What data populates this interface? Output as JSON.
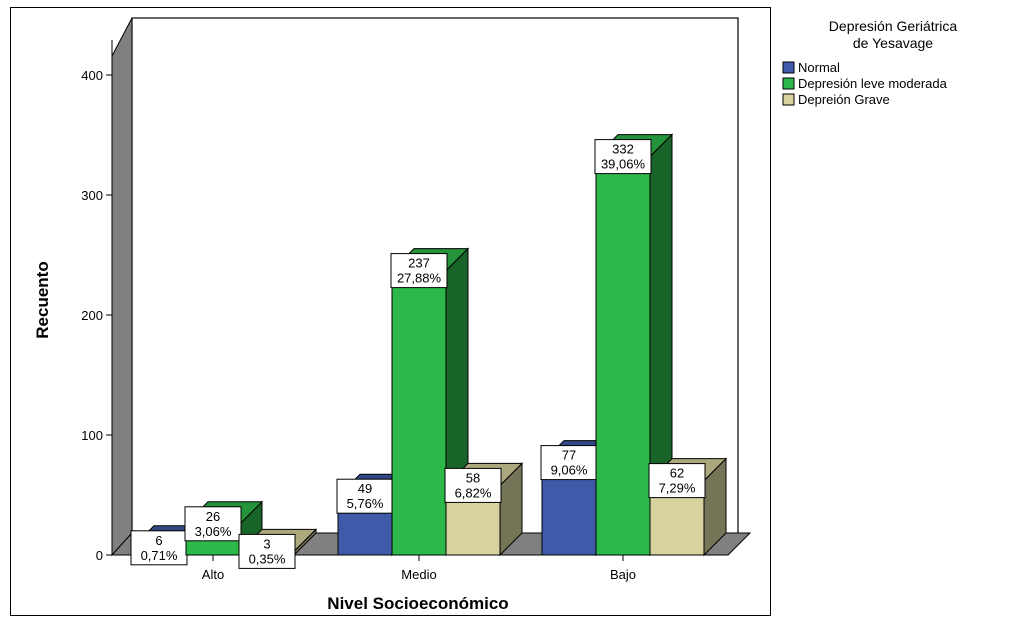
{
  "chart_data": {
    "type": "bar",
    "style": "3d-clustered",
    "xlabel": "Nivel Socioeconómico",
    "ylabel": "Recuento",
    "ylim": [
      0,
      450
    ],
    "yticks": [
      0,
      100,
      200,
      300,
      400
    ],
    "categories": [
      "Alto",
      "Medio",
      "Bajo"
    ],
    "legend": {
      "title_lines": [
        "Depresión Geriátrica",
        "de Yesavage"
      ],
      "placement": "right-top"
    },
    "series": [
      {
        "name": "Normal",
        "color": "#3f5aa8",
        "values": [
          6,
          49,
          77
        ],
        "percents": [
          "0,71%",
          "5,76%",
          "9,06%"
        ]
      },
      {
        "name": "Depresión leve moderada",
        "color": "#2db84a",
        "values": [
          26,
          237,
          332
        ],
        "percents": [
          "3,06%",
          "27,88%",
          "39,06%"
        ]
      },
      {
        "name": "Depreión Grave",
        "color": "#d7d29e",
        "values": [
          3,
          58,
          62
        ],
        "percents": [
          "0,35%",
          "6,82%",
          "7,29%"
        ]
      }
    ],
    "grid": false
  }
}
